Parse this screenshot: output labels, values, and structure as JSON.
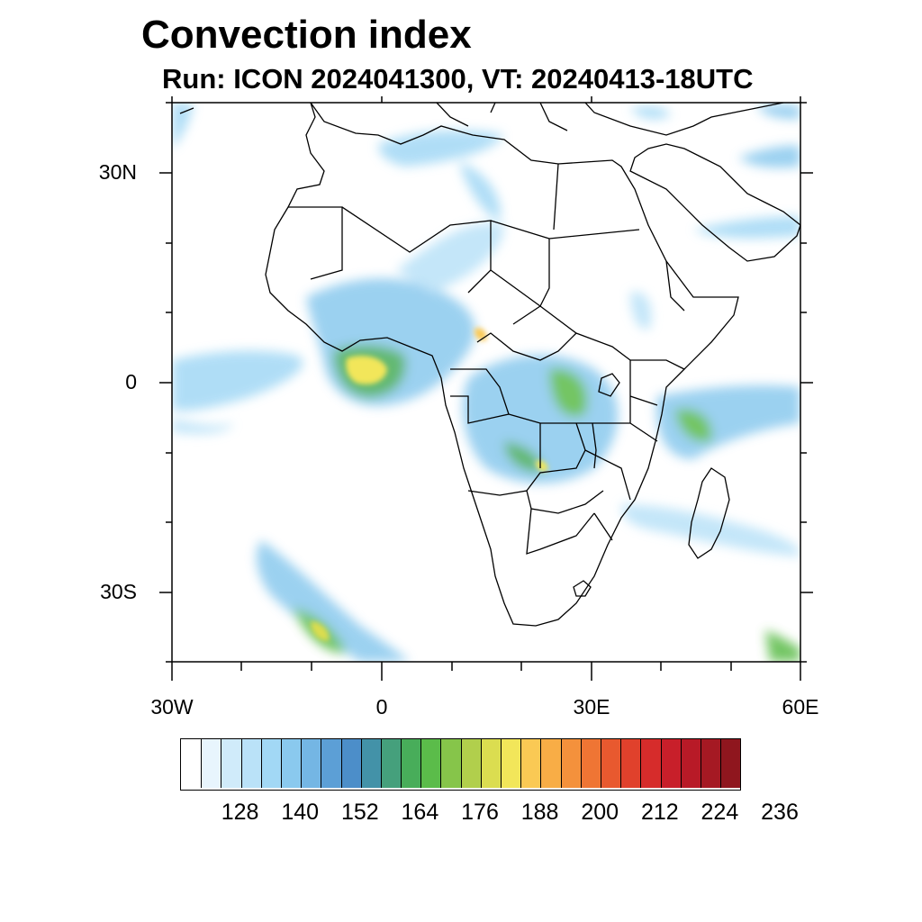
{
  "title": "Convection index",
  "subtitle": "Run: ICON 2024041300,  VT: 20240413-18UTC",
  "lat_labels": [
    "30N",
    "0",
    "30S"
  ],
  "lon_labels": [
    "30W",
    "0",
    "30E",
    "60E"
  ],
  "colorbar": {
    "labels": [
      "128",
      "140",
      "152",
      "164",
      "176",
      "188",
      "200",
      "212",
      "224",
      "236"
    ],
    "colors": [
      "#ffffff",
      "#e8f5fd",
      "#d0ebfa",
      "#bae2f8",
      "#a2d8f5",
      "#8ac9ee",
      "#74b6e4",
      "#5c9fd6",
      "#4c8ec9",
      "#4392a8",
      "#45a07c",
      "#48ad5a",
      "#5bbc4a",
      "#86c54a",
      "#b1cf4c",
      "#dbdd50",
      "#f2e65a",
      "#fac954",
      "#f8ad46",
      "#f4913c",
      "#ef7534",
      "#e8592f",
      "#e0412c",
      "#d62c2b",
      "#c81f2a",
      "#b81a27",
      "#a51923",
      "#8f161e"
    ]
  }
}
